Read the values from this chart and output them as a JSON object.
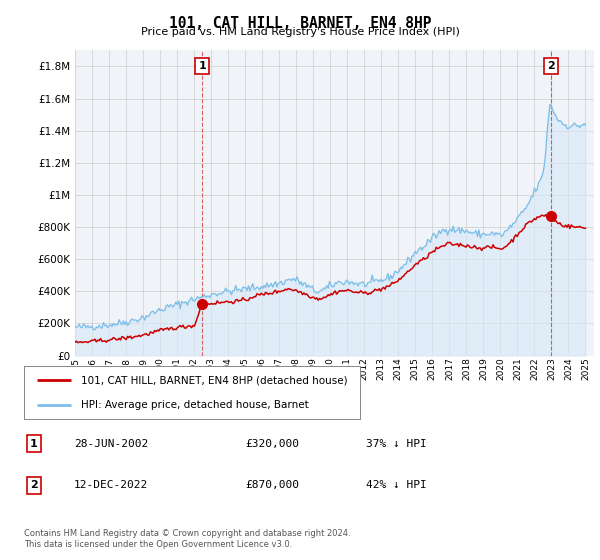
{
  "title": "101, CAT HILL, BARNET, EN4 8HP",
  "subtitle": "Price paid vs. HM Land Registry's House Price Index (HPI)",
  "ylabel_ticks": [
    "£0",
    "£200K",
    "£400K",
    "£600K",
    "£800K",
    "£1M",
    "£1.2M",
    "£1.4M",
    "£1.6M",
    "£1.8M"
  ],
  "ytick_values": [
    0,
    200000,
    400000,
    600000,
    800000,
    1000000,
    1200000,
    1400000,
    1600000,
    1800000
  ],
  "ylim": [
    0,
    1900000
  ],
  "xlim_start": 1995.0,
  "xlim_end": 2025.5,
  "hpi_color": "#7bbde8",
  "hpi_fill_color": "#d6e8f7",
  "price_color": "#cc0000",
  "marker1_date": 2002.49,
  "marker1_price": 320000,
  "marker2_date": 2022.95,
  "marker2_price": 870000,
  "vline_color": "#cc0000",
  "background_color": "#f0f4f8",
  "grid_color": "#d8d8d8",
  "legend_label_price": "101, CAT HILL, BARNET, EN4 8HP (detached house)",
  "legend_label_hpi": "HPI: Average price, detached house, Barnet",
  "annotation1_label": "1",
  "annotation1_date": "28-JUN-2002",
  "annotation1_price": "£320,000",
  "annotation1_pct": "37% ↓ HPI",
  "annotation2_label": "2",
  "annotation2_date": "12-DEC-2022",
  "annotation2_price": "£870,000",
  "annotation2_pct": "42% ↓ HPI",
  "footer": "Contains HM Land Registry data © Crown copyright and database right 2024.\nThis data is licensed under the Open Government Licence v3.0.",
  "xtick_years": [
    1995,
    1996,
    1997,
    1998,
    1999,
    2000,
    2001,
    2002,
    2003,
    2004,
    2005,
    2006,
    2007,
    2008,
    2009,
    2010,
    2011,
    2012,
    2013,
    2014,
    2015,
    2016,
    2017,
    2018,
    2019,
    2020,
    2021,
    2022,
    2023,
    2024,
    2025
  ]
}
